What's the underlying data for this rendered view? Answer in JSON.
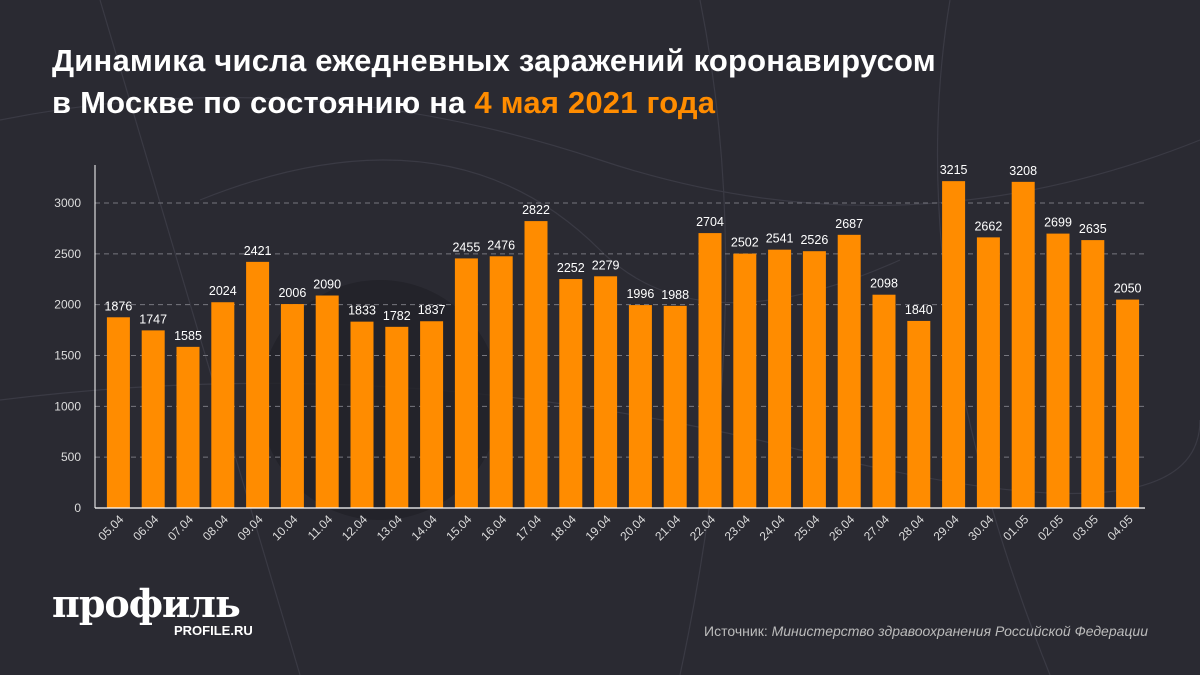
{
  "title": {
    "line1": "Динамика числа ежедневных заражений коронавирусом",
    "line2_prefix": "в Москве по состоянию на ",
    "line2_accent": "4 мая 2021 года"
  },
  "logo": {
    "main": "профиль",
    "sub": "PROFILE.RU"
  },
  "source": {
    "label": "Источник: ",
    "value": "Министерство здравоохранения Российской Федерации"
  },
  "colors": {
    "bar": "#ff8c00",
    "background": "#2a2a32",
    "accent": "#ff8c00"
  },
  "chart_data": {
    "type": "bar",
    "title": "Динамика числа ежедневных заражений коронавирусом в Москве по состоянию на 4 мая 2021 года",
    "xlabel": "",
    "ylabel": "",
    "ylim": [
      0,
      3300
    ],
    "yticks": [
      0,
      500,
      1000,
      1500,
      2000,
      2500,
      3000
    ],
    "grid": true,
    "categories": [
      "05.04",
      "06.04",
      "07.04",
      "08.04",
      "09.04",
      "10.04",
      "11.04",
      "12.04",
      "13.04",
      "14.04",
      "15.04",
      "16.04",
      "17.04",
      "18.04",
      "19.04",
      "20.04",
      "21.04",
      "22.04",
      "23.04",
      "24.04",
      "25.04",
      "26.04",
      "27.04",
      "28.04",
      "29.04",
      "30.04",
      "01.05",
      "02.05",
      "03.05",
      "04.05"
    ],
    "values": [
      1876,
      1747,
      1585,
      2024,
      2421,
      2006,
      2090,
      1833,
      1782,
      1837,
      2455,
      2476,
      2822,
      2252,
      2279,
      1996,
      1988,
      2704,
      2502,
      2541,
      2526,
      2687,
      2098,
      1840,
      3215,
      2662,
      3208,
      2699,
      2635,
      2050
    ]
  }
}
